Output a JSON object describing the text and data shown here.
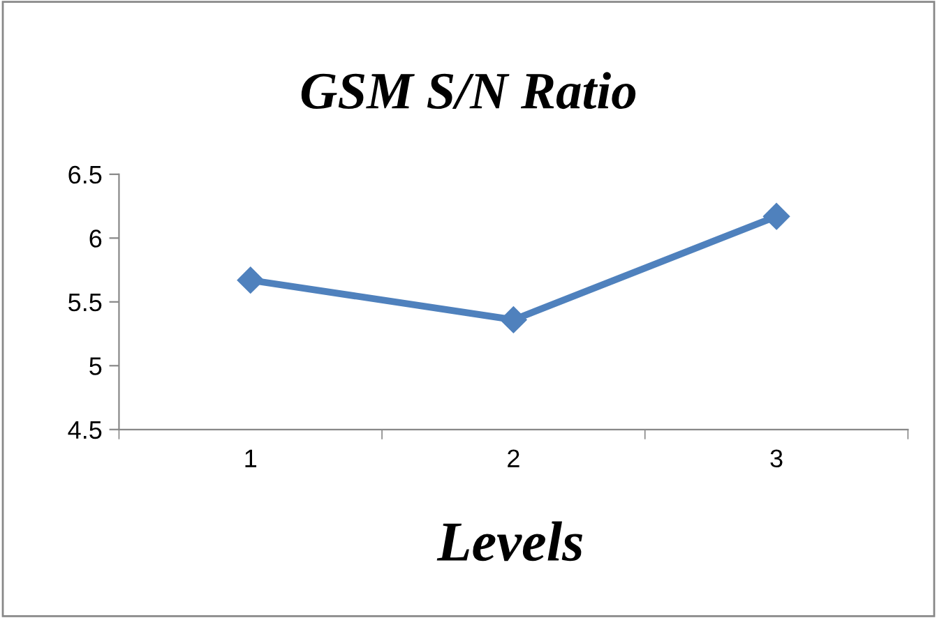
{
  "chart_data": {
    "type": "line",
    "title": "GSM S/N Ratio",
    "xlabel": "Levels",
    "categories": [
      "1",
      "2",
      "3"
    ],
    "series": [
      {
        "color": "#4f81bd",
        "values": [
          5.67,
          5.36,
          6.17
        ]
      }
    ],
    "ylim": [
      4.5,
      6.5
    ],
    "yticks": [
      4.5,
      5,
      5.5,
      6,
      6.5
    ],
    "grid": false,
    "legend": false,
    "marker": "diamond",
    "line_style": "solid"
  }
}
